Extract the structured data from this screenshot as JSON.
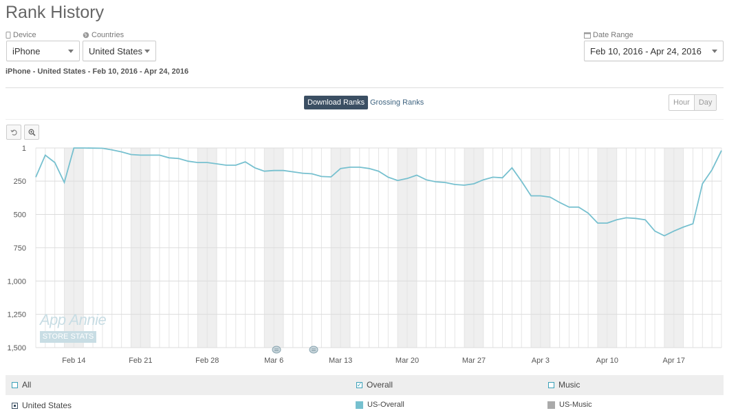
{
  "page": {
    "title": "Rank History",
    "subtitle": "iPhone - United States - Feb 10, 2016 - Apr 24, 2016"
  },
  "filters": {
    "device": {
      "label": "Device",
      "value": "iPhone",
      "icon": "phone-icon"
    },
    "countries": {
      "label": "Countries",
      "value": "United States",
      "icon": "globe-icon"
    },
    "date_range": {
      "label": "Date Range",
      "value": "Feb 10, 2016 - Apr 24, 2016",
      "icon": "calendar-icon"
    }
  },
  "tabs": {
    "download": "Download Ranks",
    "grossing": "Grossing Ranks"
  },
  "granularity": {
    "hour": "Hour",
    "day": "Day"
  },
  "tools": {
    "reset": "reset-zoom-icon",
    "zoom": "zoom-icon"
  },
  "watermark": {
    "line1": "App Annie",
    "line2": "STORE STATS"
  },
  "legend": {
    "all": "All",
    "overall": "Overall",
    "music": "Music",
    "country": "United States",
    "series_overall": "US-Overall",
    "series_music": "US-Music"
  },
  "colors": {
    "line": "#76c0cf",
    "weekend": "#efefef",
    "accent": "#3b4f63",
    "music": "#aaaaaa"
  },
  "chart_data": {
    "type": "line",
    "ylim": [
      1,
      1500
    ],
    "y_inverted": true,
    "yticks": [
      1,
      250,
      500,
      750,
      1000,
      1250,
      1500
    ],
    "ytick_labels": [
      "1",
      "250",
      "500",
      "750",
      "1,000",
      "1,250",
      "1,500"
    ],
    "x_start": "Feb 10",
    "xtick_labels": [
      "Feb 14",
      "Feb 21",
      "Feb 28",
      "Mar 6",
      "Mar 13",
      "Mar 20",
      "Mar 27",
      "Apr 3",
      "Apr 10",
      "Apr 17"
    ],
    "grid": true,
    "series": [
      {
        "name": "US-Overall",
        "values": [
          220,
          55,
          110,
          260,
          1,
          1,
          2,
          3,
          15,
          30,
          50,
          55,
          55,
          55,
          75,
          80,
          100,
          110,
          110,
          120,
          130,
          130,
          105,
          150,
          175,
          170,
          170,
          180,
          190,
          195,
          215,
          218,
          155,
          145,
          145,
          155,
          175,
          220,
          245,
          230,
          205,
          240,
          255,
          260,
          275,
          280,
          270,
          240,
          220,
          225,
          150,
          250,
          360,
          360,
          370,
          410,
          445,
          445,
          490,
          565,
          565,
          540,
          525,
          530,
          540,
          625,
          660,
          625,
          595,
          570,
          270,
          165,
          20
        ]
      }
    ]
  }
}
